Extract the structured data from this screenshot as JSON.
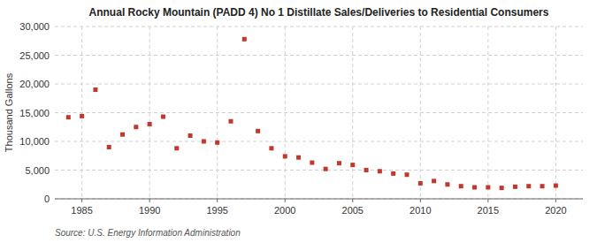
{
  "chart_data": {
    "type": "scatter",
    "title": "Annual Rocky Mountain (PADD 4) No 1 Distillate Sales/Deliveries to Residential Consumers",
    "ylabel": "Thousand Gallons",
    "source": "Source: U.S. Energy Information Administration",
    "x": [
      1984,
      1985,
      1986,
      1987,
      1988,
      1989,
      1990,
      1991,
      1992,
      1993,
      1994,
      1995,
      1996,
      1997,
      1998,
      1999,
      2000,
      2001,
      2002,
      2003,
      2004,
      2005,
      2006,
      2007,
      2008,
      2009,
      2010,
      2011,
      2012,
      2013,
      2014,
      2015,
      2016,
      2017,
      2018,
      2019,
      2020
    ],
    "values": [
      14200,
      14400,
      19000,
      9000,
      11200,
      12500,
      13000,
      14300,
      8800,
      11000,
      10000,
      9800,
      13500,
      27800,
      11800,
      8800,
      7400,
      7200,
      6300,
      5200,
      6200,
      5900,
      5000,
      4800,
      4400,
      4200,
      2700,
      3100,
      2500,
      2200,
      2000,
      2000,
      1900,
      2100,
      2200,
      2200,
      2300
    ],
    "color": "#c0392b",
    "marker": "square",
    "xlim": [
      1983,
      2022
    ],
    "xticks": [
      1985,
      1990,
      1995,
      2000,
      2005,
      2010,
      2015,
      2020
    ],
    "ylim": [
      0,
      30000
    ],
    "yticks": [
      0,
      {
        "value": 5000,
        "label": "5,000"
      },
      {
        "value": 10000,
        "label": "10,000"
      },
      {
        "value": 15000,
        "label": "15,000"
      },
      {
        "value": 20000,
        "label": "20,000"
      },
      {
        "value": 25000,
        "label": "25,000"
      },
      {
        "value": 30000,
        "label": "30,000"
      }
    ],
    "grid": true
  }
}
